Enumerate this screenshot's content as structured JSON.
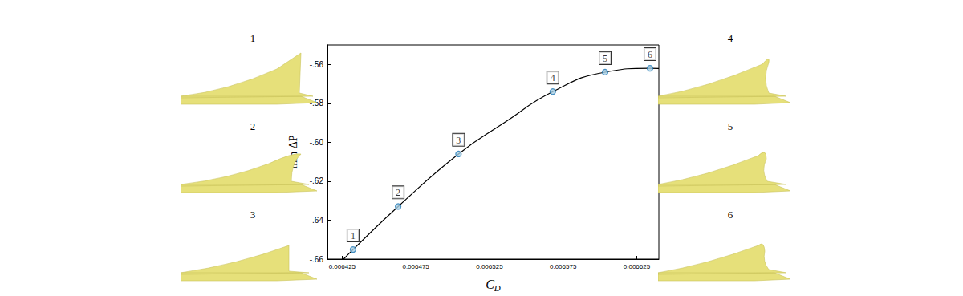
{
  "chart_data": {
    "type": "line",
    "xlabel": "CD",
    "ylabel": "min ΔP",
    "curve": {
      "color": "#000000",
      "line_style": "solid",
      "x": [
        0.006426,
        0.0064324,
        0.006463,
        0.006504,
        0.006535,
        0.006568,
        0.0066035,
        0.006634,
        0.00664
      ],
      "values": [
        -0.66,
        -0.6551,
        -0.633,
        -0.606,
        -0.59,
        -0.574,
        -0.564,
        -0.562,
        -0.5621
      ]
    },
    "points": {
      "color": "#1f77b4",
      "marker": "circle",
      "x": [
        0.0064324,
        0.006463,
        0.006504,
        0.006568,
        0.0066035,
        0.006634
      ],
      "values": [
        -0.6551,
        -0.633,
        -0.606,
        -0.574,
        -0.564,
        -0.562
      ],
      "point_labels": [
        "1",
        "2",
        "3",
        "4",
        "5",
        "6"
      ]
    },
    "insets": [
      "1",
      "2",
      "3",
      "4",
      "5",
      "6"
    ],
    "xlim": [
      0.006415,
      0.00664
    ],
    "xticks": [
      0.006425,
      0.006475,
      0.006525,
      0.006575,
      0.006625
    ],
    "ylim": [
      -0.66,
      -0.55
    ],
    "yticks": [
      -0.66,
      -0.64,
      -0.62,
      -0.6,
      -0.58,
      -0.56
    ],
    "grid": false
  }
}
